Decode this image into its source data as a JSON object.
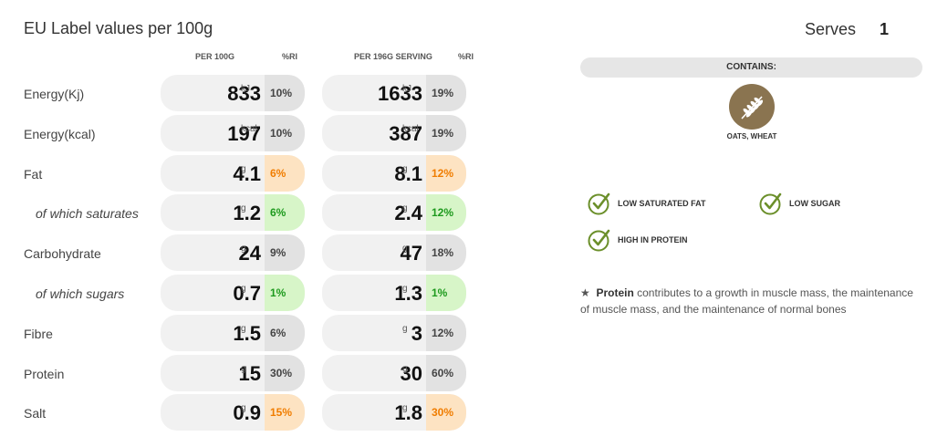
{
  "header": {
    "title": "EU Label values per 100g",
    "serves_label": "Serves",
    "serves_value": "1"
  },
  "columns": {
    "per100": "PER 100G",
    "ri1": "%RI",
    "per_serving": "PER 196G SERVING",
    "ri2": "%RI"
  },
  "rows": [
    {
      "label": "Energy(Kj)",
      "v100": "833",
      "u100": "kJ",
      "ri100": "10%",
      "vserv": "1633",
      "userv": "kJ",
      "riserv": "19%"
    },
    {
      "label": "Energy(kcal)",
      "v100": "197",
      "u100": "kcal",
      "ri100": "10%",
      "vserv": "387",
      "userv": "kcal",
      "riserv": "19%"
    },
    {
      "label": "Fat",
      "v100": "4.1",
      "u100": "g",
      "ri100": "6%",
      "vserv": "8.1",
      "userv": "g",
      "riserv": "12%"
    },
    {
      "label": "of which saturates",
      "v100": "1.2",
      "u100": "g",
      "ri100": "6%",
      "vserv": "2.4",
      "userv": "g",
      "riserv": "12%"
    },
    {
      "label": "Carbohydrate",
      "v100": "24",
      "u100": "g",
      "ri100": "9%",
      "vserv": "47",
      "userv": "g",
      "riserv": "18%"
    },
    {
      "label": "of which sugars",
      "v100": "0.7",
      "u100": "g",
      "ri100": "1%",
      "vserv": "1.3",
      "userv": "g",
      "riserv": "1%"
    },
    {
      "label": "Fibre",
      "v100": "1.5",
      "u100": "g",
      "ri100": "6%",
      "vserv": "3",
      "userv": "g",
      "riserv": "12%"
    },
    {
      "label": "Protein",
      "v100": "15",
      "u100": "g",
      "ri100": "30%",
      "vserv": "30",
      "userv": "g",
      "riserv": "60%"
    },
    {
      "label": "Salt",
      "v100": "0.9",
      "u100": "g",
      "ri100": "15%",
      "vserv": "1.8",
      "userv": "g",
      "riserv": "30%"
    }
  ],
  "colors": {
    "ri_grey": "#e2e2e2",
    "ri_orange_bg": "#fde3c2",
    "ri_orange_text": "#f07d00",
    "ri_green_bg": "#d7f5c8",
    "ri_green_text": "#1e9a1e",
    "check_green": "#6b8f2a",
    "allergen_brown": "#8a7450"
  },
  "allergens": {
    "heading": "CONTAINS:",
    "icon": "wheat-icon",
    "label": "OATS, WHEAT"
  },
  "claims": [
    {
      "icon": "check-circle-icon",
      "text": "LOW SATURATED FAT"
    },
    {
      "icon": "check-circle-icon",
      "text": "LOW SUGAR"
    },
    {
      "icon": "check-circle-icon",
      "text": "HIGH IN PROTEIN"
    }
  ],
  "footnote": {
    "star": "★",
    "bold": "Protein",
    "text": " contributes to a growth in muscle mass, the maintenance of muscle mass, and the maintenance of normal bones"
  }
}
